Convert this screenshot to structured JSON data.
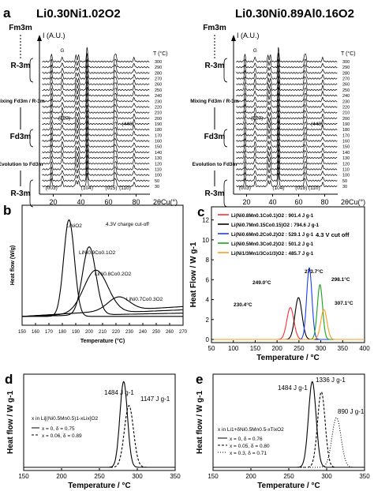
{
  "panels": {
    "a": {
      "letter": "a",
      "left": {
        "title": "Li0.30Ni1.02O2",
        "ylabel": "I (A.U.)",
        "xlabel": "2θCu(°)",
        "t_unit": "T (°C)",
        "phases": [
          "Fm3m",
          "R-3m",
          "Mixing Fd3m / R-3m",
          "Fd3m",
          "Evolution to Fd3m",
          "R-3m"
        ],
        "temps": [
          "300",
          "290",
          "280",
          "270",
          "260",
          "250",
          "240",
          "230",
          "220",
          "210",
          "200",
          "190",
          "180",
          "170",
          "160",
          "150",
          "140",
          "130",
          "120",
          "110",
          "100",
          "50",
          "30"
        ],
        "peak_labels": [
          "G",
          "(220)",
          "(440)",
          "(003)",
          "(104)",
          "(015)",
          "(110)"
        ],
        "xticks": [
          "20",
          "40",
          "60",
          "80"
        ],
        "xrange": [
          10,
          90
        ]
      },
      "right": {
        "title": "Li0.30Ni0.89Al0.16O2",
        "ylabel": "I (A.U.)",
        "xlabel": "2θCu(°)",
        "t_unit": "T (°C)",
        "phases": [
          "Fm3m",
          "R-3m",
          "Mixing Fd3m / R-3m",
          "Fd3m",
          "Evolution to Fd3m",
          "R-3m"
        ],
        "temps": [
          "300",
          "290",
          "280",
          "270",
          "260",
          "250",
          "240",
          "230",
          "220",
          "210",
          "200",
          "190",
          "180",
          "170",
          "160",
          "150",
          "140",
          "130",
          "120",
          "110",
          "100",
          "50",
          "30"
        ],
        "peak_labels": [
          "G",
          "(220)",
          "(440)",
          "(003)",
          "(104)",
          "(018)",
          "(110)"
        ],
        "xticks": [
          "20",
          "40",
          "60",
          "80"
        ],
        "xrange": [
          10,
          90
        ]
      }
    },
    "b": {
      "letter": "b",
      "ylabel": "Heat flow (W/g)",
      "xlabel": "Temperature (°C)",
      "annotation": "4.3V charge cut-off",
      "series_labels": [
        "LiNiO2",
        "LiNi0.9Co0.1O2",
        "LiNi0.8Co0.2O2",
        "LiNi0.7Co0.3O2"
      ],
      "xticks": [
        "150",
        "160",
        "170",
        "180",
        "190",
        "200",
        "210",
        "220",
        "230",
        "240",
        "250",
        "260",
        "270"
      ],
      "xrange": [
        150,
        270
      ]
    },
    "c": {
      "letter": "c",
      "ylabel": "Heat Flow / W g-1",
      "xlabel": "Temperature / °C",
      "annotation": "4.3 V cut off",
      "legend": [
        {
          "name": "Li(Ni0.8Mn0.1Co0.1)O2 : 901.4 J g-1",
          "color": "#ff2d2d"
        },
        {
          "name": "Li(Ni0.7Mn0.15Co0.15)O2 : 794.6 J g-1",
          "color": "#000000"
        },
        {
          "name": "Li(Ni0.6Mn0.2Co0.2)O2 : 529.1 J g-1",
          "color": "#1a3cff"
        },
        {
          "name": "Li(Ni0.5Mn0.3Co0.2)O2 : 501.2 J g-1",
          "color": "#16a31a"
        },
        {
          "name": "Li(Ni1/3Mn1/3Co1/3)O2 : 485.7 J g-1",
          "color": "#ff9a1a"
        }
      ],
      "peak_labels": [
        "230.4°C",
        "249.0°C",
        "273.7°C",
        "298.1°C",
        "307.1°C"
      ],
      "yticks": [
        "0",
        "2",
        "4",
        "6",
        "8",
        "10",
        "12"
      ],
      "xticks": [
        "50",
        "100",
        "150",
        "200",
        "250",
        "300",
        "350",
        "400"
      ],
      "xrange": [
        50,
        400
      ],
      "yrange": [
        0,
        13
      ]
    },
    "d": {
      "letter": "d",
      "ylabel": "Heat flow / W g-1",
      "xlabel": "Temperature / °C",
      "legend_title": "x in Li[(Ni0.5Mn0.5)1-xLix]O2",
      "legend": [
        "x = 0, δ = 0.75",
        "x = 0.06, δ = 0.89"
      ],
      "peak_labels": [
        "1484 J g-1",
        "1147 J g-1"
      ],
      "xticks": [
        "150",
        "200",
        "250",
        "300",
        "350"
      ],
      "xrange": [
        150,
        350
      ]
    },
    "e": {
      "letter": "e",
      "ylabel": "Heat flow / W g-1",
      "xlabel": "Temperature / °C",
      "legend_title": "x in Li1+δNi0.5Mn0.5-xTixO2",
      "legend": [
        "x = 0, δ = 0.76",
        "x = 0.05, δ = 0.80",
        "x = 0.3, δ = 0.71"
      ],
      "peak_labels": [
        "1484 J g-1",
        "1336 J g-1",
        "890 J g-1"
      ],
      "xticks": [
        "150",
        "200",
        "250",
        "300",
        "350"
      ],
      "xrange": [
        150,
        350
      ]
    }
  },
  "chart_data": [
    {
      "type": "line",
      "title": "Li0.30Ni1.02O2",
      "xlabel": "2θCu(°)",
      "ylabel": "I (A.U.)",
      "xlim": [
        10,
        90
      ],
      "peaks_2theta": [
        18.7,
        26.5,
        36.5,
        38.3,
        44.5,
        64.5,
        65.5,
        78.5
      ],
      "temperatures": [
        300,
        290,
        280,
        270,
        260,
        250,
        240,
        230,
        220,
        210,
        200,
        190,
        180,
        170,
        160,
        150,
        140,
        130,
        120,
        110,
        100,
        50,
        30
      ]
    },
    {
      "type": "line",
      "title": "Li0.30Ni0.89Al0.16O2",
      "xlabel": "2θCu(°)",
      "ylabel": "I (A.U.)",
      "xlim": [
        10,
        90
      ],
      "peaks_2theta": [
        18.7,
        26.5,
        36.5,
        38.3,
        44.5,
        64.5,
        65.5,
        78.5
      ],
      "temperatures": [
        300,
        290,
        280,
        270,
        260,
        250,
        240,
        230,
        220,
        210,
        200,
        190,
        180,
        170,
        160,
        150,
        140,
        130,
        120,
        110,
        100,
        50,
        30
      ]
    },
    {
      "type": "line",
      "xlabel": "Temperature (°C)",
      "ylabel": "Heat flow (W/g)",
      "xlim": [
        150,
        270
      ],
      "series": [
        {
          "name": "LiNiO2",
          "peak_T": 185,
          "peak_h": 0.85,
          "width": 4
        },
        {
          "name": "LiNi0.9Co0.1O2",
          "peak_T": 200,
          "peak_h": 0.6,
          "width": 5
        },
        {
          "name": "LiNi0.8Co0.2O2",
          "peak_T": 205,
          "peak_h": 0.38,
          "width": 9
        },
        {
          "name": "LiNi0.7Co0.3O2",
          "peak_T": 222,
          "peak_h": 0.12,
          "width": 8
        }
      ]
    },
    {
      "type": "line",
      "xlabel": "Temperature / °C",
      "ylabel": "Heat Flow / W g-1",
      "xlim": [
        50,
        400
      ],
      "ylim": [
        0,
        13
      ],
      "series": [
        {
          "name": "Li(Ni0.8Mn0.1Co0.1)O2",
          "peak_T": 230.4,
          "peak_h": 3.2,
          "width": 8
        },
        {
          "name": "Li(Ni0.7Mn0.15Co0.15)O2",
          "peak_T": 249.0,
          "peak_h": 4.2,
          "width": 8
        },
        {
          "name": "Li(Ni0.6Mn0.2Co0.2)O2",
          "peak_T": 273.7,
          "peak_h": 7.2,
          "width": 6
        },
        {
          "name": "Li(Ni0.5Mn0.3Co0.2)O2",
          "peak_T": 298.1,
          "peak_h": 5.5,
          "width": 6
        },
        {
          "name": "Li(Ni1/3Mn1/3Co1/3)O2",
          "peak_T": 307.1,
          "peak_h": 3.0,
          "width": 7
        }
      ]
    },
    {
      "type": "line",
      "xlabel": "Temperature / °C",
      "ylabel": "Heat flow / W g-1",
      "xlim": [
        150,
        350
      ],
      "series": [
        {
          "name": "x = 0, δ = 0.75",
          "peak_T": 282,
          "peak_h": 1.0,
          "width": 5
        },
        {
          "name": "x = 0.06, δ = 0.89",
          "peak_T": 289,
          "peak_h": 0.72,
          "width": 6
        }
      ]
    },
    {
      "type": "line",
      "xlabel": "Temperature / °C",
      "ylabel": "Heat flow / W g-1",
      "xlim": [
        150,
        350
      ],
      "series": [
        {
          "name": "x = 0, δ = 0.76",
          "peak_T": 281,
          "peak_h": 1.0,
          "width": 5
        },
        {
          "name": "x = 0.05, δ = 0.80",
          "peak_T": 293,
          "peak_h": 0.88,
          "width": 5
        },
        {
          "name": "x = 0.3, δ = 0.71",
          "peak_T": 313,
          "peak_h": 0.58,
          "width": 6
        }
      ]
    }
  ]
}
